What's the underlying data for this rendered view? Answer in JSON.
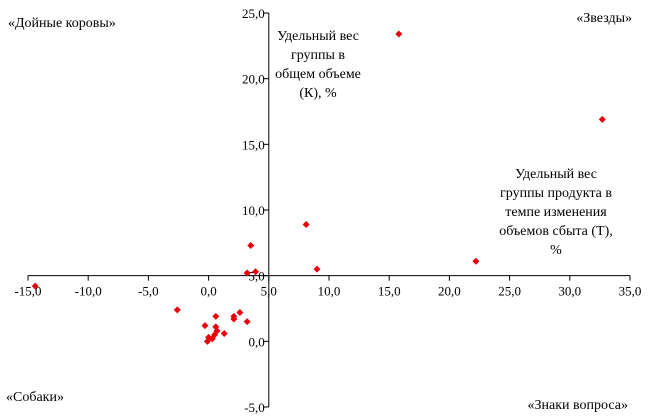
{
  "chart_data": {
    "type": "scatter",
    "x_axis": {
      "min": -15,
      "max": 35,
      "ticks": [
        -15,
        -10,
        -5,
        0,
        5,
        10,
        15,
        20,
        25,
        30,
        35
      ],
      "tick_labels": [
        "-15,0",
        "-10,0",
        "-5,0",
        "0,0",
        "5,0",
        "10,0",
        "15,0",
        "20,0",
        "25,0",
        "30,0",
        "35,0"
      ]
    },
    "y_axis": {
      "min": -5,
      "max": 25,
      "ticks": [
        -5,
        0,
        5,
        10,
        15,
        20,
        25
      ],
      "tick_labels": [
        "-5,0",
        "0,0",
        "5,0",
        "10,0",
        "15,0",
        "20,0",
        "25,0"
      ]
    },
    "y_axis_label": [
      "Удельный вес",
      "группы в",
      "общем объеме",
      "(К), %"
    ],
    "x_axis_label": [
      "Удельный вес",
      "группы продукта в",
      "темпе изменения",
      "объемов сбыта (Т),",
      "%"
    ],
    "quadrant_labels": {
      "top_left": "«Дойные коровы»",
      "top_right": "«Звезды»",
      "bottom_left": "«Собаки»",
      "bottom_right": "«Знаки вопроса»"
    },
    "grid": false,
    "marker_color": "#e8000b",
    "points": [
      {
        "x": 15.8,
        "y": 23.4
      },
      {
        "x": 32.7,
        "y": 16.9
      },
      {
        "x": 8.1,
        "y": 8.9
      },
      {
        "x": 3.5,
        "y": 7.3
      },
      {
        "x": 22.2,
        "y": 6.1
      },
      {
        "x": 9.0,
        "y": 5.5
      },
      {
        "x": 3.9,
        "y": 5.3
      },
      {
        "x": 3.2,
        "y": 5.2
      },
      {
        "x": -14.4,
        "y": 4.2
      },
      {
        "x": -2.6,
        "y": 2.4
      },
      {
        "x": 0.6,
        "y": 1.9
      },
      {
        "x": 2.6,
        "y": 2.2
      },
      {
        "x": 2.1,
        "y": 1.9
      },
      {
        "x": 2.1,
        "y": 1.7
      },
      {
        "x": 3.2,
        "y": 1.5
      },
      {
        "x": -0.3,
        "y": 1.2
      },
      {
        "x": 0.6,
        "y": 1.1
      },
      {
        "x": 0.7,
        "y": 0.8
      },
      {
        "x": 1.3,
        "y": 0.6
      },
      {
        "x": 0.5,
        "y": 0.5
      },
      {
        "x": 0.0,
        "y": 0.3
      },
      {
        "x": 0.3,
        "y": 0.2
      },
      {
        "x": -0.1,
        "y": 0.0
      }
    ]
  }
}
